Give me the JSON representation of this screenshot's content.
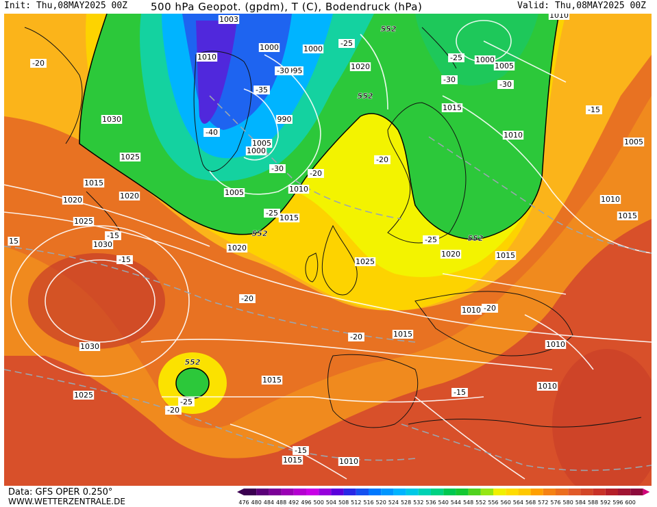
{
  "header": {
    "init": "Init: Thu,08MAY2025 00Z",
    "title": "500 hPa Geopot. (gpdm), T (C), Bodendruck (hPa)",
    "valid": "Valid: Thu,08MAY2025 00Z"
  },
  "footer": {
    "data_source": "Data: GFS OPER 0.250°",
    "website": "WWW.WETTERZENTRALE.DE"
  },
  "legend": {
    "values": [
      "476",
      "480",
      "484",
      "488",
      "492",
      "496",
      "500",
      "504",
      "508",
      "512",
      "516",
      "520",
      "524",
      "528",
      "532",
      "536",
      "540",
      "544",
      "548",
      "552",
      "556",
      "560",
      "564",
      "568",
      "572",
      "576",
      "580",
      "584",
      "588",
      "592",
      "596",
      "600"
    ],
    "colors": [
      "#3a0050",
      "#5a0078",
      "#7a0096",
      "#9a00b4",
      "#b400d0",
      "#c800e6",
      "#9600dc",
      "#5a00dc",
      "#2828e6",
      "#1450f0",
      "#0078ff",
      "#0096ff",
      "#00b4ff",
      "#00c8e6",
      "#00d2b4",
      "#00d282",
      "#00c850",
      "#14c832",
      "#50d21e",
      "#96e614",
      "#f0f000",
      "#ffdc00",
      "#ffc800",
      "#ffa000",
      "#f58214",
      "#eb6e1e",
      "#e15a28",
      "#d24628",
      "#c83228",
      "#b41e28",
      "#a01432",
      "#8c0a3c"
    ]
  },
  "labels": {
    "pressure": [
      {
        "text": "1003"
      },
      {
        "text": "1010"
      },
      {
        "text": "1000"
      },
      {
        "text": "1000"
      },
      {
        "text": "995"
      },
      {
        "text": "1020"
      },
      {
        "text": "1000"
      },
      {
        "text": "1005"
      },
      {
        "text": "1010"
      },
      {
        "text": "1030"
      },
      {
        "text": "1015"
      },
      {
        "text": "990"
      },
      {
        "text": "1005"
      },
      {
        "text": "1000"
      },
      {
        "text": "1010"
      },
      {
        "text": "1005"
      },
      {
        "text": "1025"
      },
      {
        "text": "1015"
      },
      {
        "text": "1020"
      },
      {
        "text": "1020"
      },
      {
        "text": "1010"
      },
      {
        "text": "1005"
      },
      {
        "text": "1025"
      },
      {
        "text": "1030"
      },
      {
        "text": "1015"
      },
      {
        "text": "1010"
      },
      {
        "text": "1015"
      },
      {
        "text": "1020"
      },
      {
        "text": "1025"
      },
      {
        "text": "1020"
      },
      {
        "text": "1015"
      },
      {
        "text": "1030"
      },
      {
        "text": "1010"
      },
      {
        "text": "1015"
      },
      {
        "text": "1015"
      },
      {
        "text": "1010"
      },
      {
        "text": "1025"
      },
      {
        "text": "1010"
      },
      {
        "text": "1015"
      },
      {
        "text": "1010"
      }
    ],
    "temperature": [
      {
        "text": "-20"
      },
      {
        "text": "-25"
      },
      {
        "text": "-25"
      },
      {
        "text": "-30"
      },
      {
        "text": "-30"
      },
      {
        "text": "-35"
      },
      {
        "text": "-30"
      },
      {
        "text": "-40"
      },
      {
        "text": "-30"
      },
      {
        "text": "-20"
      },
      {
        "text": "-20"
      },
      {
        "text": "-25"
      },
      {
        "text": "-15"
      },
      {
        "text": "-15"
      },
      {
        "text": "-15"
      },
      {
        "text": "-25"
      },
      {
        "text": "-20"
      },
      {
        "text": "-20"
      },
      {
        "text": "-20"
      },
      {
        "text": "-25"
      },
      {
        "text": "-20"
      },
      {
        "text": "-15"
      },
      {
        "text": "-15"
      },
      {
        "text": "15"
      }
    ],
    "geopotential": [
      {
        "text": "552"
      },
      {
        "text": "552"
      },
      {
        "text": "552"
      },
      {
        "text": "552"
      },
      {
        "text": "552"
      }
    ]
  }
}
